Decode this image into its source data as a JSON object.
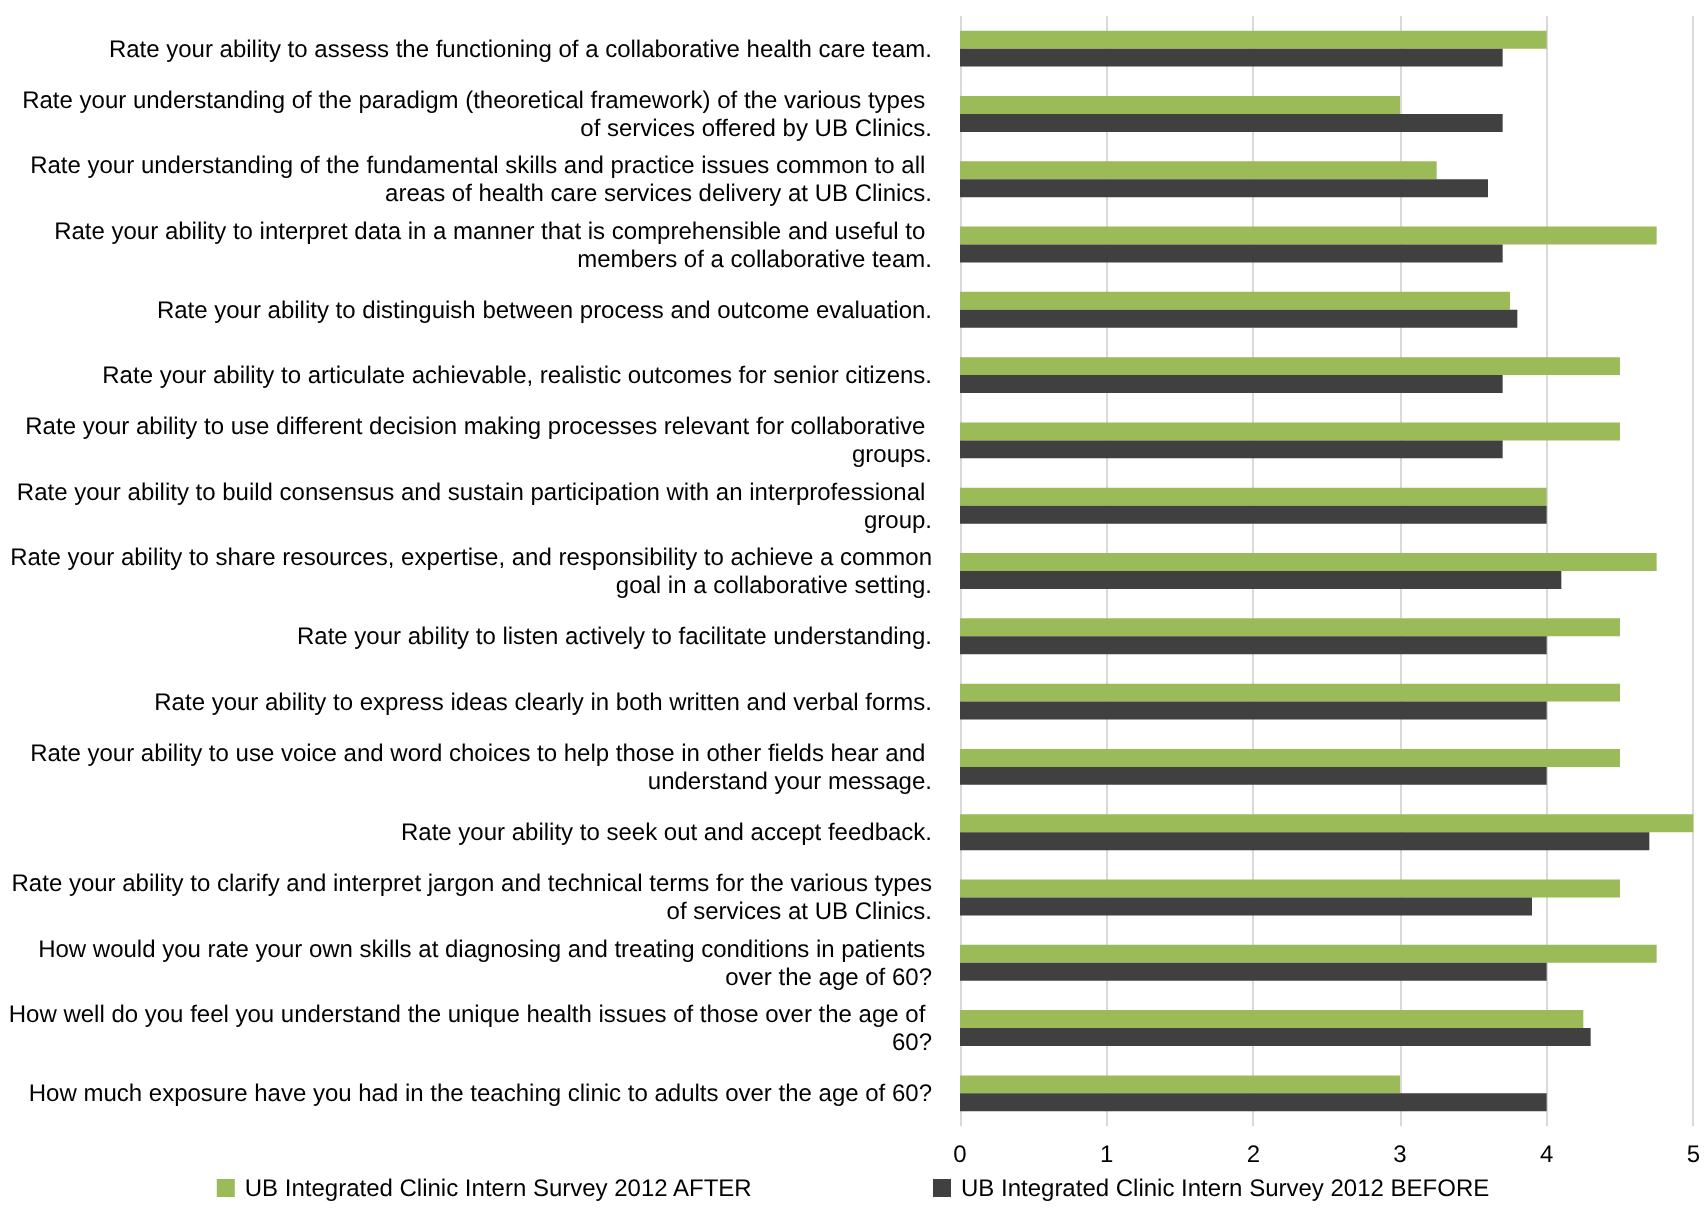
{
  "chart_data": {
    "type": "bar",
    "orientation": "horizontal",
    "categories": [
      "Rate your ability to assess the functioning of a collaborative health care team.",
      "Rate your understanding of the paradigm (theoretical framework) of the various types of services offered by UB Clinics.",
      "Rate your understanding of the fundamental skills and practice issues common to all areas of health care services delivery at UB Clinics.",
      "Rate your ability to interpret data in a manner that is comprehensible and useful to members of a collaborative team.",
      "Rate your ability to distinguish between process and outcome evaluation.",
      "Rate your ability to articulate achievable, realistic outcomes for senior citizens.",
      "Rate your ability to use different decision making processes relevant for collaborative groups.",
      "Rate your ability to build consensus and sustain participation with an interprofessional group.",
      "Rate your ability to share resources, expertise, and responsibility to achieve a common goal in a collaborative setting.",
      "Rate your ability to listen actively to facilitate understanding.",
      "Rate your ability to express ideas clearly in both written and verbal forms.",
      "Rate your ability to use voice and word choices to help those in other fields hear and understand your message.",
      "Rate your ability to seek out and accept feedback.",
      "Rate your ability to clarify and interpret jargon and technical terms for the various types of services at UB Clinics.",
      "How would you rate your own skills at diagnosing and treating conditions in patients over the age of 60?",
      "How well do you feel you understand the unique health issues of those over the age of 60?",
      "How much exposure have you had in the teaching clinic to adults over the age of 60?"
    ],
    "series": [
      {
        "name": "UB Integrated Clinic Intern Survey 2012 AFTER",
        "color": "#9bbb59",
        "values": [
          4.0,
          3.0,
          3.25,
          4.75,
          3.75,
          4.5,
          4.5,
          4.0,
          4.75,
          4.5,
          4.5,
          4.5,
          5.0,
          4.5,
          4.75,
          4.25,
          3.0
        ]
      },
      {
        "name": "UB Integrated Clinic Intern Survey 2012 BEFORE",
        "color": "#404040",
        "values": [
          3.7,
          3.7,
          3.6,
          3.7,
          3.8,
          3.7,
          3.7,
          4.0,
          4.1,
          4.0,
          4.0,
          4.0,
          4.7,
          3.9,
          4.0,
          4.3,
          4.0
        ]
      }
    ],
    "xlim": [
      0,
      5
    ],
    "xticks": [
      0,
      1,
      2,
      3,
      4,
      5
    ],
    "grid": "x",
    "legend": "bottom"
  }
}
